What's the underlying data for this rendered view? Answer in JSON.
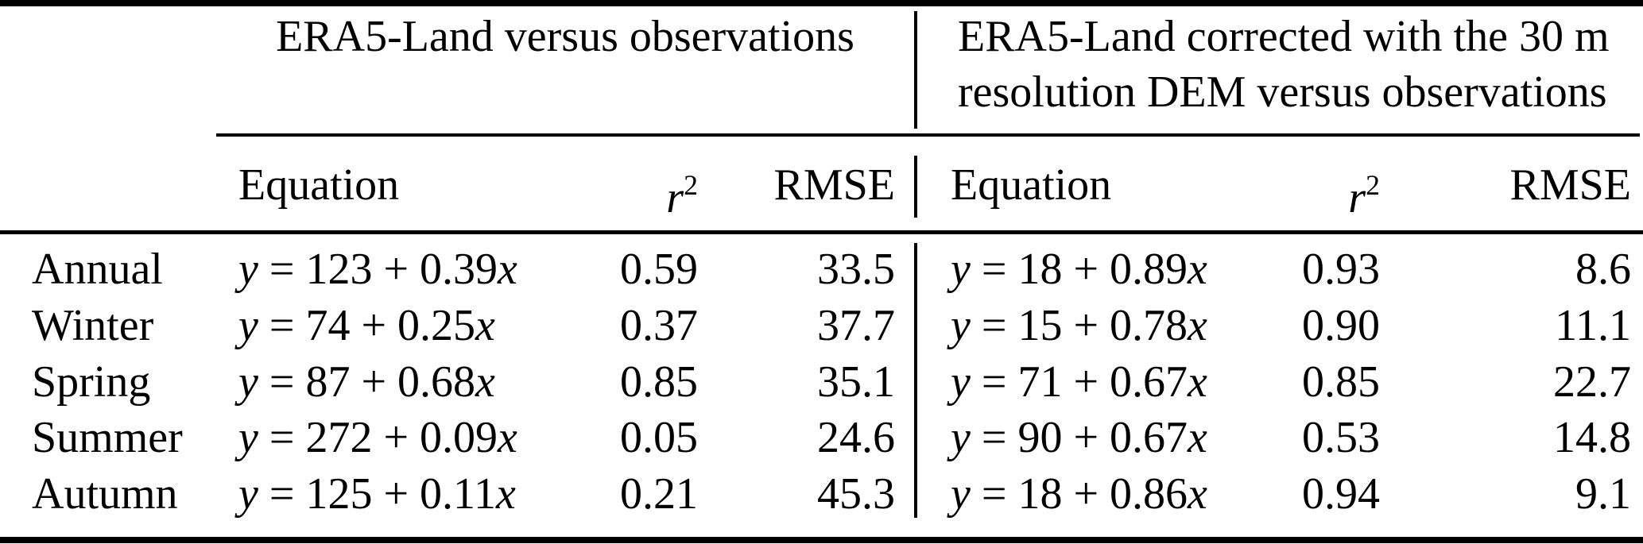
{
  "page": {
    "background": "#ffffff",
    "text_color": "#000000",
    "rule_color": "#000000"
  },
  "table": {
    "group_headers": [
      {
        "lines": [
          "ERA5-Land versus observations"
        ]
      },
      {
        "lines": [
          "ERA5-Land corrected with the 30 m",
          "resolution DEM versus observations"
        ]
      }
    ],
    "columns": {
      "season_label": "",
      "equation_label": "Equation",
      "r2_base": "r",
      "r2_sup": "2",
      "rmse_label": "RMSE"
    },
    "rows": [
      {
        "season": "Annual",
        "era5": {
          "equation": "y = 123 + 0.39x",
          "r2": "0.59",
          "rmse": "33.5"
        },
        "corrected": {
          "equation": "y = 18 + 0.89x",
          "r2": "0.93",
          "rmse": "8.6"
        }
      },
      {
        "season": "Winter",
        "era5": {
          "equation": "y = 74 + 0.25x",
          "r2": "0.37",
          "rmse": "37.7"
        },
        "corrected": {
          "equation": "y = 15 + 0.78x",
          "r2": "0.90",
          "rmse": "11.1"
        }
      },
      {
        "season": "Spring",
        "era5": {
          "equation": "y = 87 + 0.68x",
          "r2": "0.85",
          "rmse": "35.1"
        },
        "corrected": {
          "equation": "y = 71 + 0.67x",
          "r2": "0.85",
          "rmse": "22.7"
        }
      },
      {
        "season": "Summer",
        "era5": {
          "equation": "y = 272 + 0.09x",
          "r2": "0.05",
          "rmse": "24.6"
        },
        "corrected": {
          "equation": "y = 90 + 0.67x",
          "r2": "0.53",
          "rmse": "14.8"
        }
      },
      {
        "season": "Autumn",
        "era5": {
          "equation": "y = 125 + 0.11x",
          "r2": "0.21",
          "rmse": "45.3"
        },
        "corrected": {
          "equation": "y = 18 + 0.86x",
          "r2": "0.94",
          "rmse": "9.1"
        }
      }
    ]
  }
}
